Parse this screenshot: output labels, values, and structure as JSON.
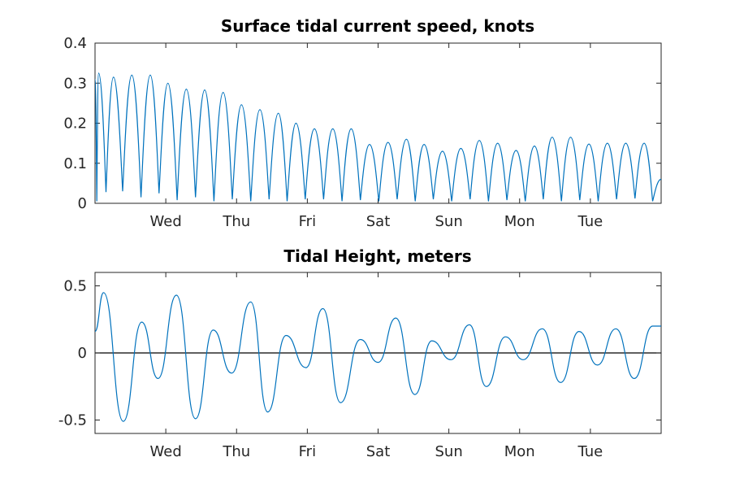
{
  "colors": {
    "series": "#0072bd",
    "axis": "#262626",
    "zero_line": "#000000"
  },
  "chart_data": [
    {
      "type": "line",
      "title": "Surface tidal current speed, knots",
      "xlabel": "",
      "ylabel": "",
      "x_unit": "days",
      "xlim": [
        0,
        8
      ],
      "ylim": [
        0,
        0.4
      ],
      "x_ticks": [
        1,
        2,
        3,
        4,
        5,
        6,
        7
      ],
      "x_tick_labels": [
        "Wed",
        "Thu",
        "Fri",
        "Sat",
        "Sun",
        "Mon",
        "Tue"
      ],
      "y_ticks": [
        0,
        0.1,
        0.2,
        0.3,
        0.4
      ],
      "y_tick_labels": [
        "0",
        "0.1",
        "0.2",
        "0.3",
        "0.4"
      ],
      "grid": false,
      "series": [
        {
          "x": [
            0,
            0.05,
            0.26,
            0.52,
            0.78,
            1.03,
            1.29,
            1.55,
            1.81,
            2.07,
            2.33,
            2.59,
            2.84,
            3.1,
            3.36,
            3.62,
            3.88,
            4.14,
            4.4,
            4.65,
            4.91,
            5.17,
            5.43,
            5.69,
            5.95,
            6.21,
            6.46,
            6.72,
            6.98,
            7.24,
            7.5,
            7.76,
            8.0
          ],
          "y": [
            0.31,
            0.325,
            0.315,
            0.32,
            0.32,
            0.3,
            0.285,
            0.283,
            0.277,
            0.246,
            0.234,
            0.225,
            0.2,
            0.186,
            0.186,
            0.186,
            0.147,
            0.152,
            0.16,
            0.147,
            0.13,
            0.137,
            0.157,
            0.15,
            0.132,
            0.143,
            0.165,
            0.165,
            0.148,
            0.15,
            0.15,
            0.15,
            0.06
          ],
          "minima": [
            0.005,
            0.028,
            0.03,
            0.015,
            0.025,
            0.008,
            0.015,
            0.005,
            0.01,
            0.005,
            0.01,
            0.005,
            0.01,
            0.01,
            0.005,
            0.008,
            0.005,
            0.01,
            0.005,
            0.01,
            0.005,
            0.01,
            0.005,
            0.008,
            0.005,
            0.01,
            0.005,
            0.008,
            0.005,
            0.01,
            0.012
          ]
        }
      ]
    },
    {
      "type": "line",
      "title": "Tidal Height, meters",
      "xlabel": "",
      "ylabel": "",
      "x_unit": "days",
      "xlim": [
        0,
        8
      ],
      "ylim": [
        -0.6,
        0.6
      ],
      "x_ticks": [
        1,
        2,
        3,
        4,
        5,
        6,
        7
      ],
      "x_tick_labels": [
        "Wed",
        "Thu",
        "Fri",
        "Sat",
        "Sun",
        "Mon",
        "Tue"
      ],
      "y_ticks": [
        -0.5,
        0,
        0.5
      ],
      "y_tick_labels": [
        "-0.5",
        "0",
        "0.5"
      ],
      "grid": false,
      "zero_line": true,
      "series": [
        {
          "x": [
            0,
            0.12,
            0.4,
            0.66,
            0.89,
            1.15,
            1.42,
            1.67,
            1.93,
            2.2,
            2.44,
            2.7,
            2.98,
            3.22,
            3.47,
            3.75,
            4.0,
            4.25,
            4.52,
            4.76,
            5.03,
            5.29,
            5.53,
            5.8,
            6.05,
            6.32,
            6.58,
            6.84,
            7.1,
            7.36,
            7.62,
            7.88,
            8.0
          ],
          "y": [
            0.16,
            0.45,
            -0.51,
            0.23,
            -0.19,
            0.43,
            -0.49,
            0.17,
            -0.15,
            0.38,
            -0.44,
            0.13,
            -0.11,
            0.33,
            -0.37,
            0.1,
            -0.07,
            0.26,
            -0.31,
            0.09,
            -0.05,
            0.21,
            -0.25,
            0.12,
            -0.05,
            0.18,
            -0.22,
            0.16,
            -0.09,
            0.18,
            -0.19,
            0.2,
            0.2
          ]
        }
      ]
    }
  ]
}
